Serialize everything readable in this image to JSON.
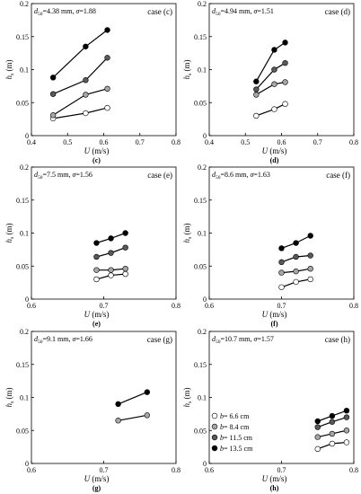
{
  "panel_styles": {
    "stroke_color": "#000000",
    "series": [
      {
        "name": "b= 6.6 cm",
        "fill": "#ffffff"
      },
      {
        "name": "b= 8.4 cm",
        "fill": "#a6a6a6"
      },
      {
        "name": "b= 11.5 cm",
        "fill": "#595959"
      },
      {
        "name": "b= 13.5 cm",
        "fill": "#000000"
      }
    ]
  },
  "chart_data": [
    {
      "type": "line",
      "panel": "c",
      "case_label": "case (c)",
      "annotation": "d50=4.38 mm, σ=1.88",
      "annotation_parts": {
        "d50": "4.38 mm",
        "sigma": "1.88"
      },
      "caption": "(c)",
      "xlabel": "U (m/s)",
      "ylabel": "h_s (m)",
      "xlim": [
        0.4,
        0.8
      ],
      "ylim": [
        0,
        0.2
      ],
      "xticks": [
        "0.4",
        "0.5",
        "0.6",
        "0.7",
        "0.8"
      ],
      "yticks": [
        "0",
        "0.05",
        "0.1",
        "0.15",
        "0.2"
      ],
      "legend_position": "",
      "series": [
        {
          "x": [
            0.46,
            0.55,
            0.61
          ],
          "y": [
            0.026,
            0.034,
            0.042
          ]
        },
        {
          "x": [
            0.46,
            0.55,
            0.61
          ],
          "y": [
            0.031,
            0.062,
            0.071
          ]
        },
        {
          "x": [
            0.46,
            0.55,
            0.61
          ],
          "y": [
            0.063,
            0.084,
            0.118
          ]
        },
        {
          "x": [
            0.46,
            0.55,
            0.61
          ],
          "y": [
            0.088,
            0.135,
            0.16
          ]
        }
      ]
    },
    {
      "type": "line",
      "panel": "d",
      "case_label": "case (d)",
      "annotation": "d50=4.94 mm, σ=1.51",
      "annotation_parts": {
        "d50": "4.94 mm",
        "sigma": "1.51"
      },
      "caption": "(d)",
      "xlabel": "U (m/s)",
      "ylabel": "h_s (m)",
      "xlim": [
        0.4,
        0.8
      ],
      "ylim": [
        0,
        0.2
      ],
      "xticks": [
        "0.4",
        "0.5",
        "0.6",
        "0.7",
        "0.8"
      ],
      "yticks": [
        "0",
        "0.05",
        "0.1",
        "0.15",
        "0.2"
      ],
      "legend_position": "",
      "series": [
        {
          "x": [
            0.53,
            0.58,
            0.61
          ],
          "y": [
            0.03,
            0.04,
            0.048
          ]
        },
        {
          "x": [
            0.53,
            0.58,
            0.61
          ],
          "y": [
            0.062,
            0.078,
            0.081
          ]
        },
        {
          "x": [
            0.53,
            0.58,
            0.61
          ],
          "y": [
            0.07,
            0.1,
            0.11
          ]
        },
        {
          "x": [
            0.53,
            0.58,
            0.61
          ],
          "y": [
            0.082,
            0.13,
            0.141
          ]
        }
      ]
    },
    {
      "type": "line",
      "panel": "e",
      "case_label": "case (e)",
      "annotation": "d50=7.5 mm, σ=1.56",
      "annotation_parts": {
        "d50": "7.5 mm",
        "sigma": "1.56"
      },
      "caption": "(e)",
      "xlabel": "U (m/s)",
      "ylabel": "h_s (m)",
      "xlim": [
        0.6,
        0.8
      ],
      "ylim": [
        0,
        0.2
      ],
      "xticks": [
        "0.6",
        "0.7",
        "0.8"
      ],
      "yticks": [
        "0",
        "0.05",
        "0.1",
        "0.15",
        "0.2"
      ],
      "legend_position": "",
      "series": [
        {
          "x": [
            0.69,
            0.71,
            0.73
          ],
          "y": [
            0.03,
            0.036,
            0.038
          ]
        },
        {
          "x": [
            0.69,
            0.71,
            0.73
          ],
          "y": [
            0.044,
            0.044,
            0.046
          ]
        },
        {
          "x": [
            0.69,
            0.71,
            0.73
          ],
          "y": [
            0.064,
            0.07,
            0.078
          ]
        },
        {
          "x": [
            0.69,
            0.71,
            0.73
          ],
          "y": [
            0.085,
            0.092,
            0.1
          ]
        }
      ]
    },
    {
      "type": "line",
      "panel": "f",
      "case_label": "case (f)",
      "annotation": "d50=8.6 mm, σ=1.63",
      "annotation_parts": {
        "d50": "8.6 mm",
        "sigma": "1.63"
      },
      "caption": "(f)",
      "xlabel": "U (m/s)",
      "ylabel": "h_s (m)",
      "xlim": [
        0.6,
        0.8
      ],
      "ylim": [
        0,
        0.2
      ],
      "xticks": [
        "0.6",
        "0.7",
        "0.8"
      ],
      "yticks": [
        "0",
        "0.05",
        "0.1",
        "0.15",
        "0.2"
      ],
      "legend_position": "",
      "series": [
        {
          "x": [
            0.7,
            0.72,
            0.74
          ],
          "y": [
            0.018,
            0.026,
            0.03
          ]
        },
        {
          "x": [
            0.7,
            0.72,
            0.74
          ],
          "y": [
            0.04,
            0.042,
            0.046
          ]
        },
        {
          "x": [
            0.7,
            0.72,
            0.74
          ],
          "y": [
            0.056,
            0.064,
            0.066
          ]
        },
        {
          "x": [
            0.7,
            0.72,
            0.74
          ],
          "y": [
            0.077,
            0.085,
            0.096
          ]
        }
      ]
    },
    {
      "type": "line",
      "panel": "g",
      "case_label": "case (g)",
      "annotation": "d50=9.1 mm, σ=1.66",
      "annotation_parts": {
        "d50": "9.1 mm",
        "sigma": "1.66"
      },
      "caption": "(g)",
      "xlabel": "U (m/s)",
      "ylabel": "h_s (m)",
      "xlim": [
        0.6,
        0.8
      ],
      "ylim": [
        0,
        0.2
      ],
      "xticks": [
        "0.6",
        "0.7",
        "0.8"
      ],
      "yticks": [
        "0",
        "0.05",
        "0.1",
        "0.15",
        "0.2"
      ],
      "legend_position": "",
      "series": [
        {
          "x": [
            0.72,
            0.74,
            0.76
          ],
          "y": [
            0.065,
            0.069,
            0.073
          ],
          "point_style": [
            1,
            null,
            1
          ]
        },
        {
          "x": [
            0.72,
            0.76
          ],
          "y": [
            0.09,
            0.108
          ],
          "point_style": [
            3,
            3
          ]
        }
      ]
    },
    {
      "type": "line",
      "panel": "h",
      "case_label": "case (h)",
      "annotation": "d50=10.7 mm, σ=1.57",
      "annotation_parts": {
        "d50": "10.7 mm",
        "sigma": "1.57"
      },
      "caption": "(h)",
      "xlabel": "U (m/s)",
      "ylabel": "h_s (m)",
      "xlim": [
        0.6,
        0.8
      ],
      "ylim": [
        0,
        0.2
      ],
      "xticks": [
        "0.6",
        "0.7",
        "0.8"
      ],
      "yticks": [
        "0",
        "0.05",
        "0.1",
        "0.15",
        "0.2"
      ],
      "legend_position": "bottom-left",
      "legend": [
        "b= 6.6 cm",
        "b= 8.4 cm",
        "b= 11.5 cm",
        "b= 13.5 cm"
      ],
      "series": [
        {
          "x": [
            0.75,
            0.77,
            0.79
          ],
          "y": [
            0.022,
            0.03,
            0.032
          ]
        },
        {
          "x": [
            0.75,
            0.77,
            0.79
          ],
          "y": [
            0.04,
            0.045,
            0.05
          ]
        },
        {
          "x": [
            0.75,
            0.77,
            0.79
          ],
          "y": [
            0.055,
            0.063,
            0.07
          ]
        },
        {
          "x": [
            0.75,
            0.77,
            0.79
          ],
          "y": [
            0.064,
            0.072,
            0.08
          ]
        }
      ]
    }
  ]
}
